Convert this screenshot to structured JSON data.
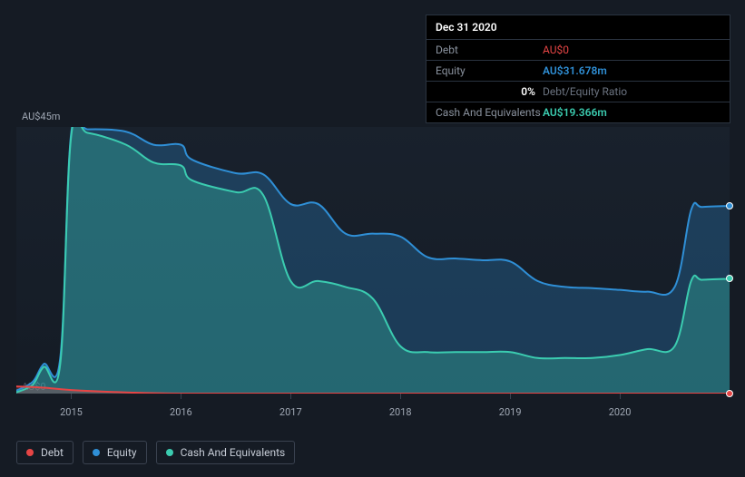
{
  "tooltip": {
    "date": "Dec 31 2020",
    "rows": {
      "debt_label": "Debt",
      "debt_value": "AU$0",
      "equity_label": "Equity",
      "equity_value": "AU$31.678m",
      "ratio_pct": "0%",
      "ratio_label": "Debt/Equity Ratio",
      "cash_label": "Cash And Equivalents",
      "cash_value": "AU$19.366m"
    }
  },
  "yaxis": {
    "max_label": "AU$45m",
    "min_label": "AU$0",
    "max_value": 45,
    "min_value": 0
  },
  "xaxis": {
    "start": 2014.5,
    "end": 2021.0,
    "ticks": [
      2015,
      2016,
      2017,
      2018,
      2019,
      2020
    ],
    "labels": [
      "2015",
      "2016",
      "2017",
      "2018",
      "2019",
      "2020"
    ]
  },
  "legend": [
    {
      "key": "debt",
      "label": "Debt",
      "color": "#e64545"
    },
    {
      "key": "equity",
      "label": "Equity",
      "color": "#2f8fd6"
    },
    {
      "key": "cash",
      "label": "Cash And Equivalents",
      "color": "#3bccb0"
    }
  ],
  "chart": {
    "type": "area",
    "background": "#151b24",
    "plot_bg_top": "rgba(32,44,60,0.35)",
    "plot_bg_bot": "rgba(20,28,38,0.6)",
    "line_width": 2,
    "cursor_x": 2021.0,
    "series": {
      "equity": {
        "color": "#2f8fd6",
        "fill": "rgba(47,143,214,0.28)",
        "points": [
          [
            2014.5,
            0.5
          ],
          [
            2014.65,
            2.0
          ],
          [
            2014.75,
            5.0
          ],
          [
            2014.9,
            6.0
          ],
          [
            2015.0,
            44.0
          ],
          [
            2015.15,
            44.6
          ],
          [
            2015.5,
            44.2
          ],
          [
            2015.75,
            42.0
          ],
          [
            2016.0,
            42.0
          ],
          [
            2016.1,
            39.5
          ],
          [
            2016.5,
            37.2
          ],
          [
            2016.75,
            37.0
          ],
          [
            2017.0,
            32.0
          ],
          [
            2017.25,
            32.0
          ],
          [
            2017.5,
            27.0
          ],
          [
            2017.75,
            27.0
          ],
          [
            2018.0,
            26.5
          ],
          [
            2018.25,
            23.0
          ],
          [
            2018.5,
            22.8
          ],
          [
            2018.75,
            22.5
          ],
          [
            2019.0,
            22.3
          ],
          [
            2019.25,
            19.0
          ],
          [
            2019.5,
            18.0
          ],
          [
            2019.75,
            17.8
          ],
          [
            2020.0,
            17.5
          ],
          [
            2020.25,
            17.2
          ],
          [
            2020.5,
            18.0
          ],
          [
            2020.65,
            31.0
          ],
          [
            2020.75,
            31.5
          ],
          [
            2021.0,
            31.678
          ]
        ]
      },
      "cash": {
        "color": "#3bccb0",
        "fill": "rgba(59,204,176,0.30)",
        "points": [
          [
            2014.5,
            0.2
          ],
          [
            2014.65,
            1.5
          ],
          [
            2014.75,
            4.5
          ],
          [
            2014.9,
            5.0
          ],
          [
            2015.0,
            43.5
          ],
          [
            2015.15,
            44.0
          ],
          [
            2015.5,
            42.0
          ],
          [
            2015.75,
            39.0
          ],
          [
            2016.0,
            38.5
          ],
          [
            2016.1,
            36.0
          ],
          [
            2016.5,
            34.0
          ],
          [
            2016.75,
            33.5
          ],
          [
            2017.0,
            19.0
          ],
          [
            2017.25,
            19.0
          ],
          [
            2017.5,
            18.0
          ],
          [
            2017.75,
            16.0
          ],
          [
            2018.0,
            8.0
          ],
          [
            2018.25,
            7.0
          ],
          [
            2018.5,
            7.0
          ],
          [
            2018.75,
            7.0
          ],
          [
            2019.0,
            7.0
          ],
          [
            2019.25,
            6.0
          ],
          [
            2019.5,
            6.0
          ],
          [
            2019.75,
            6.0
          ],
          [
            2020.0,
            6.5
          ],
          [
            2020.25,
            7.5
          ],
          [
            2020.5,
            8.0
          ],
          [
            2020.65,
            19.0
          ],
          [
            2020.75,
            19.2
          ],
          [
            2021.0,
            19.366
          ]
        ]
      },
      "debt": {
        "color": "#e64545",
        "fill": "rgba(230,69,69,0.25)",
        "points": [
          [
            2014.5,
            1.2
          ],
          [
            2014.75,
            1.0
          ],
          [
            2015.0,
            0.6
          ],
          [
            2015.5,
            0.2
          ],
          [
            2016.0,
            0.0
          ],
          [
            2017.0,
            0.0
          ],
          [
            2018.0,
            0.0
          ],
          [
            2019.0,
            0.0
          ],
          [
            2020.0,
            0.0
          ],
          [
            2021.0,
            0.0
          ]
        ]
      }
    }
  },
  "style": {
    "font_family": "-apple-system, Segoe UI, Roboto, sans-serif",
    "axis_label_fontsize": 11,
    "legend_fontsize": 12,
    "tooltip_fontsize": 12,
    "grid_color": "#3a4250",
    "text_color": "#a0a8b4"
  }
}
